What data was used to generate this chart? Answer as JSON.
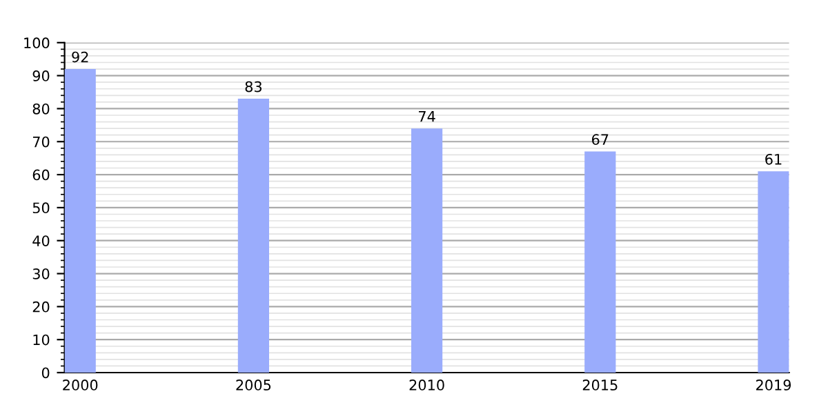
{
  "chart_data": {
    "type": "bar",
    "categories": [
      "2000",
      "2005",
      "2010",
      "2015",
      "2019"
    ],
    "values": [
      92,
      83,
      74,
      67,
      61
    ],
    "color": "#9aacfc",
    "ylim": [
      0,
      100
    ],
    "yticks": [
      0,
      10,
      20,
      30,
      40,
      50,
      60,
      70,
      80,
      90,
      100
    ],
    "grid": "y",
    "data_labels": true
  }
}
